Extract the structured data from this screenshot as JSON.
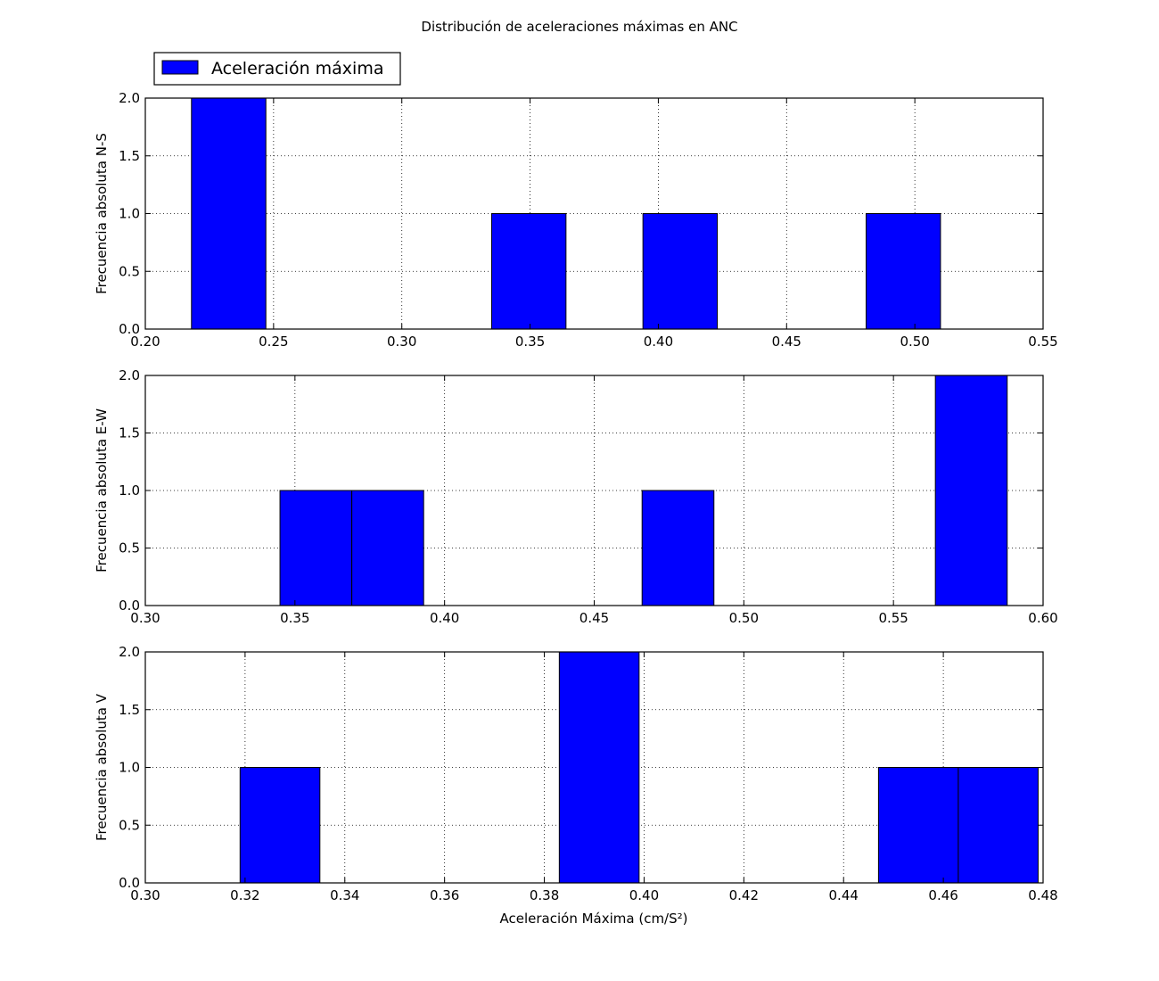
{
  "chart_data": [
    {
      "type": "bar",
      "title": "Distribución de aceleraciones máximas en ANC",
      "ylabel": "Frecuencia absoluta N-S",
      "xlabel": "",
      "xlim": [
        0.2,
        0.55
      ],
      "ylim": [
        0,
        2
      ],
      "xticks": [
        "0.20",
        "0.25",
        "0.30",
        "0.35",
        "0.40",
        "0.45",
        "0.50",
        "0.55"
      ],
      "yticks": [
        "0.0",
        "0.5",
        "1.0",
        "1.5",
        "2.0"
      ],
      "grid": true,
      "legend": {
        "label": "Aceleración máxima",
        "placement": "top-left-outside"
      },
      "bar_color": "#0000ff",
      "bins": [
        {
          "x0": 0.218,
          "x1": 0.247,
          "count": 2
        },
        {
          "x0": 0.335,
          "x1": 0.364,
          "count": 1
        },
        {
          "x0": 0.394,
          "x1": 0.423,
          "count": 1
        },
        {
          "x0": 0.481,
          "x1": 0.51,
          "count": 1
        }
      ]
    },
    {
      "type": "bar",
      "ylabel": "Frecuencia absoluta E-W",
      "xlabel": "",
      "xlim": [
        0.3,
        0.6
      ],
      "ylim": [
        0,
        2
      ],
      "xticks": [
        "0.30",
        "0.35",
        "0.40",
        "0.45",
        "0.50",
        "0.55",
        "0.60"
      ],
      "yticks": [
        "0.0",
        "0.5",
        "1.0",
        "1.5",
        "2.0"
      ],
      "grid": true,
      "bar_color": "#0000ff",
      "bins": [
        {
          "x0": 0.345,
          "x1": 0.369,
          "count": 1
        },
        {
          "x0": 0.369,
          "x1": 0.393,
          "count": 1
        },
        {
          "x0": 0.466,
          "x1": 0.49,
          "count": 1
        },
        {
          "x0": 0.564,
          "x1": 0.588,
          "count": 2
        }
      ]
    },
    {
      "type": "bar",
      "ylabel": "Frecuencia absoluta V",
      "xlabel": "Aceleración Máxima (cm/S²)",
      "xlim": [
        0.3,
        0.48
      ],
      "ylim": [
        0,
        2
      ],
      "xticks": [
        "0.30",
        "0.32",
        "0.34",
        "0.36",
        "0.38",
        "0.40",
        "0.42",
        "0.44",
        "0.46",
        "0.48"
      ],
      "yticks": [
        "0.0",
        "0.5",
        "1.0",
        "1.5",
        "2.0"
      ],
      "grid": true,
      "bar_color": "#0000ff",
      "bins": [
        {
          "x0": 0.319,
          "x1": 0.335,
          "count": 1
        },
        {
          "x0": 0.383,
          "x1": 0.399,
          "count": 2
        },
        {
          "x0": 0.447,
          "x1": 0.463,
          "count": 1
        },
        {
          "x0": 0.463,
          "x1": 0.479,
          "count": 1
        }
      ]
    }
  ]
}
